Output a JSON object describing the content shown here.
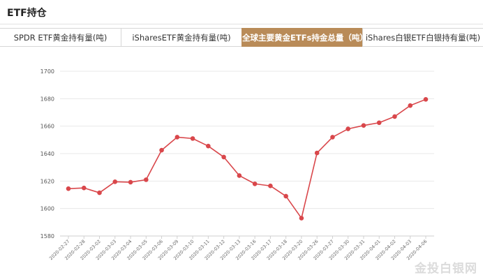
{
  "header": {
    "title": "ETF持仓"
  },
  "tabs": [
    {
      "label": "SPDR ETF黄金持有量(吨)",
      "active": false
    },
    {
      "label": "iSharesETF黄金持有量(吨)",
      "active": false
    },
    {
      "label": "全球主要黄金ETFs持金总量（吨）",
      "active": true
    },
    {
      "label": "iShares白银ETF白银持有量(吨)",
      "active": false
    }
  ],
  "colors": {
    "tab_active": "#b98b58",
    "line": "#d9474b",
    "grid": "#e8e8e8"
  },
  "watermark": "金投白银网",
  "chart_data": {
    "type": "line",
    "categories": [
      "2020-02-27",
      "2020-02-28",
      "2020-03-02",
      "2020-03-03",
      "2020-03-04",
      "2020-03-05",
      "2020-03-06",
      "2020-03-09",
      "2020-03-10",
      "2020-03-11",
      "2020-03-12",
      "2020-03-13",
      "2020-03-16",
      "2020-03-17",
      "2020-03-18",
      "2020-03-20",
      "2020-03-26",
      "2020-03-27",
      "2020-03-30",
      "2020-03-31",
      "2020-04-01",
      "2020-04-02",
      "2020-04-03",
      "2020-04-06"
    ],
    "series": [
      {
        "values": [
          1614.5,
          1615,
          1611.5,
          1619.5,
          1619.2,
          1621,
          1642.5,
          1652,
          1651,
          1645.5,
          1637.5,
          1624,
          1618,
          1616.5,
          1609,
          1593,
          1640.5,
          1652,
          1658,
          1660.5,
          1662.5,
          1667,
          1675,
          1679.5
        ]
      }
    ],
    "ylim": [
      1580,
      1700
    ],
    "yticks": [
      1580,
      1600,
      1620,
      1640,
      1660,
      1680,
      1700
    ],
    "grid": true,
    "legend": "none"
  }
}
